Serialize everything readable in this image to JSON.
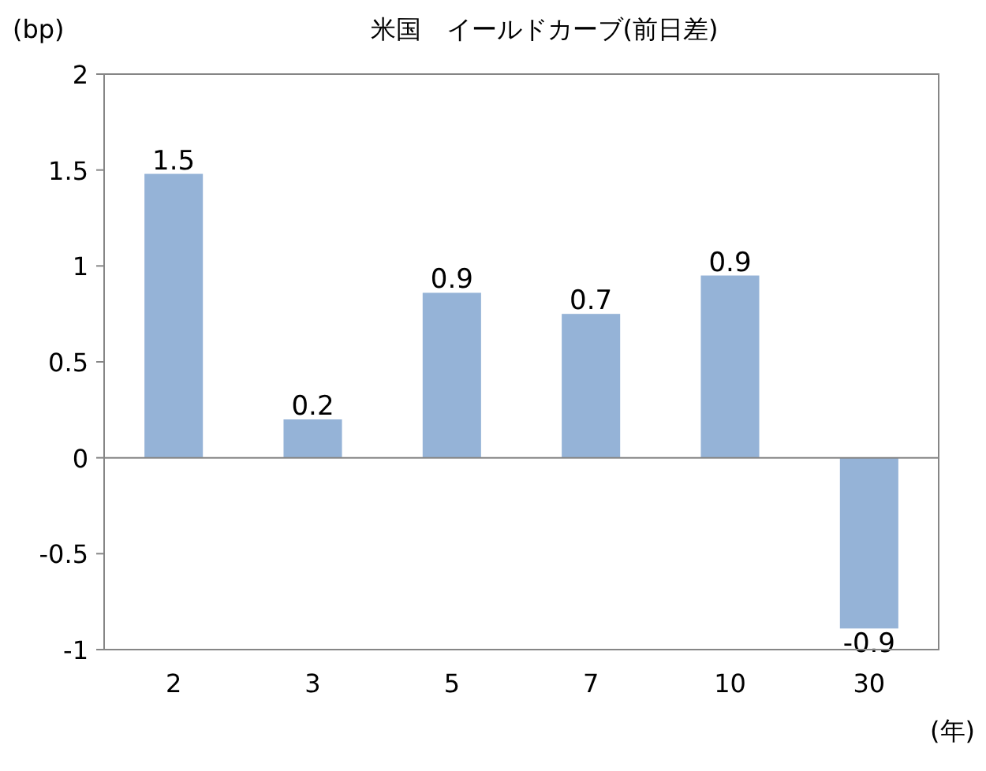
{
  "chart_data": {
    "type": "bar",
    "title": "米国　イールドカーブ(前日差)",
    "ylabel": "(bp)",
    "xlabel": "(年)",
    "categories": [
      "2",
      "3",
      "5",
      "7",
      "10",
      "30"
    ],
    "values": [
      1.48,
      0.2,
      0.86,
      0.75,
      0.95,
      -0.89
    ],
    "value_labels": [
      "1.5",
      "0.2",
      "0.9",
      "0.7",
      "0.9",
      "-0.9"
    ],
    "color": "#95b3d7",
    "ylim": [
      -1,
      2
    ],
    "yticks": [
      -1,
      -0.5,
      0,
      0.5,
      1,
      1.5,
      2
    ]
  }
}
